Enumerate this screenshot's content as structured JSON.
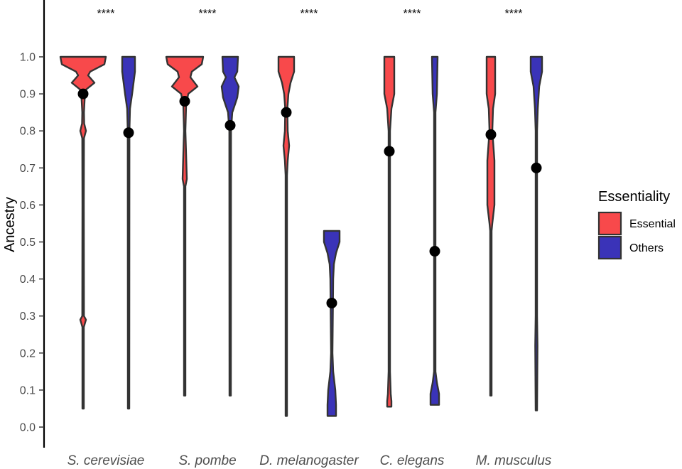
{
  "chart_data": {
    "type": "violin",
    "ylabel": "Ancestry",
    "xlabel": "",
    "ylim": [
      0,
      1
    ],
    "yticks": [
      "0.0",
      "0.1",
      "0.2",
      "0.3",
      "0.4",
      "0.5",
      "0.6",
      "0.7",
      "0.8",
      "0.9",
      "1.0"
    ],
    "grid": false,
    "categories": [
      "S. cerevisiae",
      "S. pombe",
      "D. melanogaster",
      "C. elegans",
      "M. musculus"
    ],
    "significance": [
      "****",
      "****",
      "****",
      "****",
      "****"
    ],
    "legend": {
      "title": "Essentiality",
      "position": "right",
      "entries": [
        {
          "label": "Essential",
          "color": "#f8494b"
        },
        {
          "label": "Others",
          "color": "#3a33b8"
        }
      ]
    },
    "series": [
      {
        "name": "Essential",
        "color": "#f8494b",
        "medians": [
          0.9,
          0.88,
          0.85,
          0.745,
          0.79
        ],
        "ranges": [
          [
            0.05,
            1.0
          ],
          [
            0.085,
            1.0
          ],
          [
            0.03,
            1.0
          ],
          [
            0.055,
            1.0
          ],
          [
            0.085,
            1.0
          ]
        ],
        "density": [
          [
            [
              1.0,
              32
            ],
            [
              0.98,
              30
            ],
            [
              0.96,
              10
            ],
            [
              0.95,
              7
            ],
            [
              0.93,
              16
            ],
            [
              0.91,
              3
            ],
            [
              0.88,
              2
            ],
            [
              0.85,
              1.2
            ],
            [
              0.82,
              1.5
            ],
            [
              0.8,
              4
            ],
            [
              0.78,
              1.2
            ],
            [
              0.6,
              1.0
            ],
            [
              0.3,
              1.2
            ],
            [
              0.29,
              4
            ],
            [
              0.27,
              1.0
            ],
            [
              0.05,
              1.0
            ]
          ],
          [
            [
              1.0,
              26
            ],
            [
              0.98,
              24
            ],
            [
              0.96,
              10
            ],
            [
              0.945,
              8
            ],
            [
              0.92,
              18
            ],
            [
              0.9,
              5
            ],
            [
              0.87,
              2
            ],
            [
              0.8,
              1.0
            ],
            [
              0.67,
              3
            ],
            [
              0.65,
              1.0
            ],
            [
              0.085,
              1.0
            ]
          ],
          [
            [
              1.0,
              11
            ],
            [
              0.96,
              11
            ],
            [
              0.93,
              6
            ],
            [
              0.9,
              3
            ],
            [
              0.86,
              1.5
            ],
            [
              0.8,
              2
            ],
            [
              0.76,
              4
            ],
            [
              0.72,
              2
            ],
            [
              0.68,
              1.0
            ],
            [
              0.03,
              1.0
            ]
          ],
          [
            [
              1.0,
              7
            ],
            [
              0.9,
              7
            ],
            [
              0.86,
              3
            ],
            [
              0.8,
              1.0
            ],
            [
              0.15,
              1.0
            ],
            [
              0.09,
              2
            ],
            [
              0.07,
              3
            ],
            [
              0.055,
              3
            ]
          ],
          [
            [
              1.0,
              6
            ],
            [
              0.9,
              6
            ],
            [
              0.86,
              3
            ],
            [
              0.8,
              2
            ],
            [
              0.72,
              5
            ],
            [
              0.6,
              5
            ],
            [
              0.55,
              2
            ],
            [
              0.53,
              1.0
            ],
            [
              0.085,
              1.0
            ]
          ]
        ]
      },
      {
        "name": "Others",
        "color": "#3a33b8",
        "medians": [
          0.795,
          0.815,
          0.335,
          0.475,
          0.7
        ],
        "ranges": [
          [
            0.05,
            1.0
          ],
          [
            0.085,
            1.0
          ],
          [
            0.03,
            0.53
          ],
          [
            0.06,
            1.0
          ],
          [
            0.045,
            1.0
          ]
        ],
        "density": [
          [
            [
              1.0,
              9
            ],
            [
              0.96,
              9
            ],
            [
              0.9,
              5
            ],
            [
              0.86,
              2
            ],
            [
              0.8,
              1.2
            ],
            [
              0.05,
              1.0
            ]
          ],
          [
            [
              1.0,
              11
            ],
            [
              0.96,
              10
            ],
            [
              0.945,
              6
            ],
            [
              0.92,
              12
            ],
            [
              0.89,
              10
            ],
            [
              0.85,
              3
            ],
            [
              0.8,
              1.2
            ],
            [
              0.085,
              1.0
            ]
          ],
          [
            [
              0.53,
              11
            ],
            [
              0.5,
              11
            ],
            [
              0.47,
              6
            ],
            [
              0.44,
              3
            ],
            [
              0.4,
              2
            ],
            [
              0.3,
              1.5
            ],
            [
              0.2,
              1.0
            ],
            [
              0.15,
              2
            ],
            [
              0.1,
              5
            ],
            [
              0.06,
              6
            ],
            [
              0.03,
              6
            ]
          ],
          [
            [
              1.0,
              4
            ],
            [
              0.9,
              3
            ],
            [
              0.85,
              1.0
            ],
            [
              0.15,
              1.0
            ],
            [
              0.12,
              3
            ],
            [
              0.09,
              6
            ],
            [
              0.06,
              6
            ]
          ],
          [
            [
              1.0,
              8
            ],
            [
              0.96,
              8
            ],
            [
              0.92,
              4
            ],
            [
              0.86,
              2
            ],
            [
              0.8,
              1.0
            ],
            [
              0.3,
              1.0
            ],
            [
              0.22,
              1.6
            ],
            [
              0.045,
              1.0
            ]
          ]
        ]
      }
    ]
  }
}
